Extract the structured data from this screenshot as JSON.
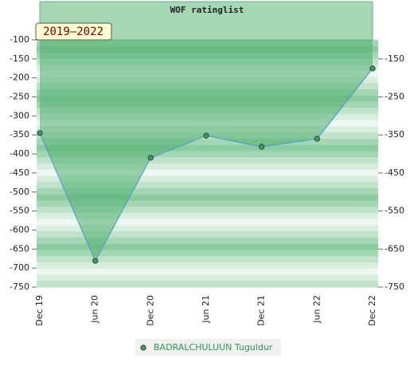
{
  "chart_data": {
    "type": "line",
    "title": "WOF ratinglist",
    "badge": "2019–2022",
    "categories": [
      "Dec 19",
      "Jun 20",
      "Dec 20",
      "Jun 21",
      "Dec 21",
      "Jun 22",
      "Dec 22"
    ],
    "series": [
      {
        "name": "BADRALCHULUUN Tuguldur",
        "color": "#5b9bd5",
        "marker_color": "#3f9a58",
        "legend_color": "#2e9a4e",
        "values": [
          -345,
          -681,
          -410,
          -352,
          -381,
          -360,
          -175
        ]
      }
    ],
    "ylim": [
      -750,
      -100
    ],
    "yticks": [
      -100,
      -150,
      -200,
      -250,
      -300,
      -350,
      -400,
      -450,
      -500,
      -550,
      -600,
      -650,
      -700,
      -750
    ],
    "y2lim": [
      -750,
      -100
    ],
    "y2ticks": [
      -150,
      -250,
      -350,
      -450,
      -550,
      -650,
      -750
    ]
  }
}
